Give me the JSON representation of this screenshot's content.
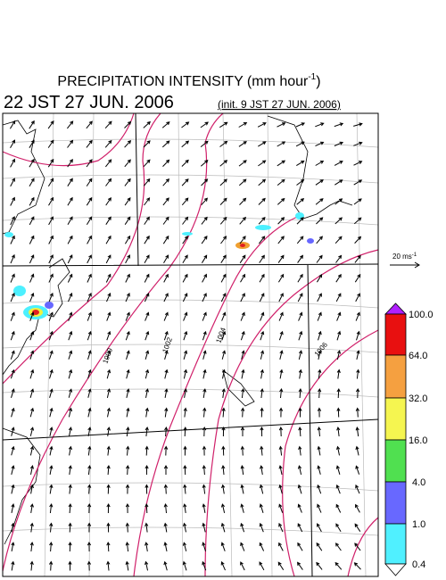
{
  "header": {
    "title": "PRECIPITATION INTENSITY (mm hour",
    "title_sup": "-1",
    "title_end": ")",
    "valid_time": "22 JST 27 JUN. 2006",
    "init_time": "(init. 9 JST 27 JUN. 2006)"
  },
  "vector_scale": {
    "label": "20 ms",
    "sup": "-1"
  },
  "contour_labels": [
    "1000",
    "1002",
    "1004",
    "1006"
  ],
  "colorbar": {
    "labels": [
      "100.0",
      "64.0",
      "32.0",
      "16.0",
      "4.0",
      "1.0",
      "0.4"
    ]
  }
}
